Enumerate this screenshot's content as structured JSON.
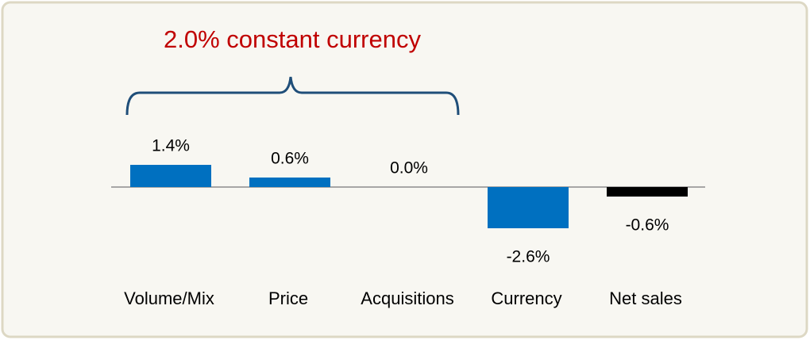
{
  "chart_data": {
    "type": "bar",
    "annotation": "2.0% constant currency",
    "categories": [
      "Volume/Mix",
      "Price",
      "Acquisitions",
      "Currency",
      "Net sales"
    ],
    "values": [
      1.4,
      0.6,
      0.0,
      -2.6,
      -0.6
    ],
    "value_labels": [
      "1.4%",
      "0.6%",
      "0.0%",
      "-2.6%",
      "-0.6%"
    ],
    "colors": [
      "#0070c0",
      "#0070c0",
      "#0070c0",
      "#0070c0",
      "#000000"
    ],
    "annotation_color": "#c00000"
  }
}
